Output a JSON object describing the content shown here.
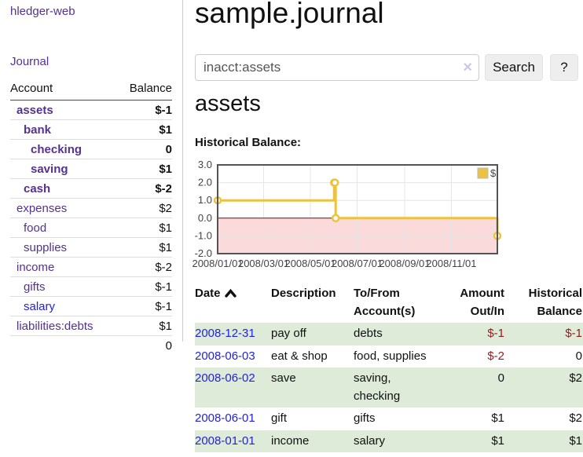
{
  "sidebar": {
    "app_title": "hledger-web",
    "journal_label": "Journal",
    "accounts_table": {
      "col_account": "Account",
      "col_balance": "Balance",
      "rows": [
        {
          "name": "assets",
          "balance": "$-1",
          "level": 0,
          "bold": true,
          "balance_tone": "negative-dark"
        },
        {
          "name": "bank",
          "balance": "$1",
          "level": 1,
          "bold": true,
          "balance_tone": "normal"
        },
        {
          "name": "checking",
          "balance": "0",
          "level": 2,
          "bold": true,
          "balance_tone": "normal"
        },
        {
          "name": "saving",
          "balance": "$1",
          "level": 2,
          "bold": true,
          "balance_tone": "normal"
        },
        {
          "name": "cash",
          "balance": "$-2",
          "level": 1,
          "bold": true,
          "balance_tone": "negative-dark"
        },
        {
          "name": "expenses",
          "balance": "$2",
          "level": 0,
          "bold": false,
          "balance_tone": "normal"
        },
        {
          "name": "food",
          "balance": "$1",
          "level": 1,
          "bold": false,
          "balance_tone": "normal"
        },
        {
          "name": "supplies",
          "balance": "$1",
          "level": 1,
          "bold": false,
          "balance_tone": "normal"
        },
        {
          "name": "income",
          "balance": "$-2",
          "level": 0,
          "bold": false,
          "balance_tone": "negative-rose"
        },
        {
          "name": "gifts",
          "balance": "$-1",
          "level": 1,
          "bold": false,
          "balance_tone": "negative-rose"
        },
        {
          "name": "salary",
          "balance": "$-1",
          "level": 1,
          "bold": false,
          "balance_tone": "negative-rose"
        },
        {
          "name": "liabilities:debts",
          "balance": "$1",
          "level": 0,
          "bold": false,
          "balance_tone": "normal"
        }
      ],
      "total": "0"
    }
  },
  "main": {
    "title": "sample.journal",
    "search": {
      "value": "inacct:assets",
      "clear_glyph": "×",
      "search_label": "Search",
      "help_label": "?"
    },
    "account_heading": "assets",
    "chart_label": "Historical Balance:",
    "register_table": {
      "headers": {
        "date": "Date",
        "description": "Description",
        "tofrom": "To/From Account(s)",
        "amount": "Amount Out/In",
        "historical": "Historical Balance"
      },
      "rows": [
        {
          "date": "2008-12-31",
          "description": "pay off",
          "tofrom": "debts",
          "amount": "$-1",
          "historical": "$-1"
        },
        {
          "date": "2008-06-03",
          "description": "eat & shop",
          "tofrom": "food, supplies",
          "amount": "$-2",
          "historical": "0"
        },
        {
          "date": "2008-06-02",
          "description": "save",
          "tofrom": "saving, checking",
          "amount": "0",
          "historical": "$2"
        },
        {
          "date": "2008-06-01",
          "description": "gift",
          "tofrom": "gifts",
          "amount": "$1",
          "historical": "$2"
        },
        {
          "date": "2008-01-01",
          "description": "income",
          "tofrom": "salary",
          "amount": "$1",
          "historical": "$1"
        }
      ]
    }
  },
  "chart_data": {
    "type": "line",
    "subtype": "step",
    "title": "Historical Balance",
    "series": [
      {
        "name": "$",
        "color": "#edc240",
        "points": [
          [
            "2008-01-01",
            1
          ],
          [
            "2008-06-01",
            2
          ],
          [
            "2008-06-02",
            2
          ],
          [
            "2008-06-03",
            0
          ],
          [
            "2008-12-31",
            -1
          ]
        ]
      }
    ],
    "xlim": [
      "2008-01-01",
      "2008-12-31"
    ],
    "ylim": [
      -2,
      3
    ],
    "x_ticks": [
      "2008/01/01",
      "2008/03/01",
      "2008/05/01",
      "2008/07/01",
      "2008/09/01",
      "2008/11/01"
    ],
    "y_ticks": [
      "3.0",
      "2.0",
      "1.0",
      "0.0",
      "-1.0",
      "-2.0"
    ],
    "legend": {
      "label": "$",
      "position": "top-right"
    },
    "grid": true,
    "negative_region_color": "#fadada",
    "zero_line_color": "#8b0000",
    "border_color": "#545454"
  },
  "colors": {
    "link_purple": "#54328f",
    "link_blue": "#2222dd",
    "negative_dark": "#8e1f1f",
    "negative_rose": "#c68686",
    "row_stripe_green": "#deebd9",
    "series_yellow": "#edc240"
  }
}
